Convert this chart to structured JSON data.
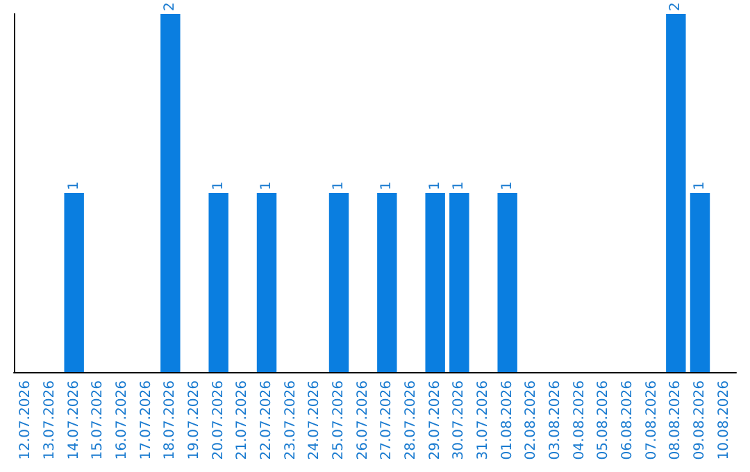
{
  "chart_data": {
    "type": "bar",
    "categories": [
      "12.07.2026",
      "13.07.2026",
      "14.07.2026",
      "15.07.2026",
      "16.07.2026",
      "17.07.2026",
      "18.07.2026",
      "19.07.2026",
      "20.07.2026",
      "21.07.2026",
      "22.07.2026",
      "23.07.2026",
      "24.07.2026",
      "25.07.2026",
      "26.07.2026",
      "27.07.2026",
      "28.07.2026",
      "29.07.2026",
      "30.07.2026",
      "31.07.2026",
      "01.08.2026",
      "02.08.2026",
      "03.08.2026",
      "04.08.2026",
      "05.08.2026",
      "06.08.2026",
      "07.08.2026",
      "08.08.2026",
      "09.08.2026",
      "10.08.2026"
    ],
    "values": [
      0,
      0,
      1,
      0,
      0,
      0,
      2,
      0,
      1,
      0,
      1,
      0,
      0,
      1,
      0,
      1,
      0,
      1,
      1,
      0,
      1,
      0,
      0,
      0,
      0,
      0,
      0,
      2,
      1,
      0
    ],
    "value_labels": [
      null,
      null,
      "1",
      null,
      null,
      null,
      "2",
      null,
      "1",
      null,
      "1",
      null,
      null,
      "1",
      null,
      "1",
      null,
      "1",
      "1",
      null,
      "1",
      null,
      null,
      null,
      null,
      null,
      null,
      "2",
      "1",
      null
    ],
    "color": "#0a7ee0",
    "tick_labels": "x"
  }
}
